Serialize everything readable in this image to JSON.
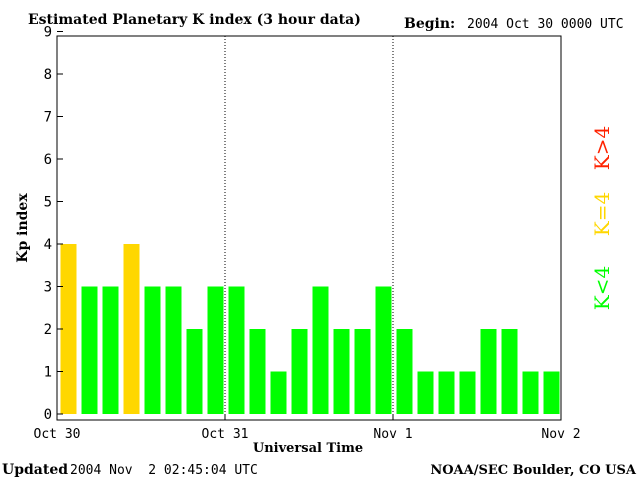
{
  "header": {
    "title": "Estimated Planetary K index (3 hour data)",
    "begin_label": "Begin:",
    "begin_value": "2004 Oct 30 0000 UTC"
  },
  "footer": {
    "updated_label": "Updated",
    "updated_value": "2004 Nov  2 02:45:04 UTC",
    "source": "NOAA/SEC Boulder, CO USA"
  },
  "chart_data": {
    "type": "bar",
    "title": "Estimated Planetary K index (3 hour data)",
    "xlabel": "Universal Time",
    "ylabel": "Kp index",
    "ylim": [
      0,
      9
    ],
    "yticks": [
      "0",
      "1",
      "2",
      "3",
      "4",
      "5",
      "6",
      "7",
      "8",
      "9"
    ],
    "xticks": [
      "Oct 30",
      "Oct 31",
      "Nov 1",
      "Nov 2"
    ],
    "day_separators": true,
    "grid": false,
    "values": [
      4,
      3,
      3,
      4,
      3,
      3,
      2,
      3,
      3,
      2,
      1,
      2,
      3,
      2,
      2,
      3,
      2,
      1,
      1,
      1,
      2,
      2,
      1,
      1
    ],
    "colors": {
      "below_4": "#00ff00",
      "equal_4": "#ffd700",
      "above_4": "#ff2200"
    },
    "legend": [
      {
        "label": "K<4",
        "color": "#00ff00"
      },
      {
        "label": "K=4",
        "color": "#ffd700"
      },
      {
        "label": "K>4",
        "color": "#ff2200"
      }
    ],
    "legend_position": "right"
  }
}
